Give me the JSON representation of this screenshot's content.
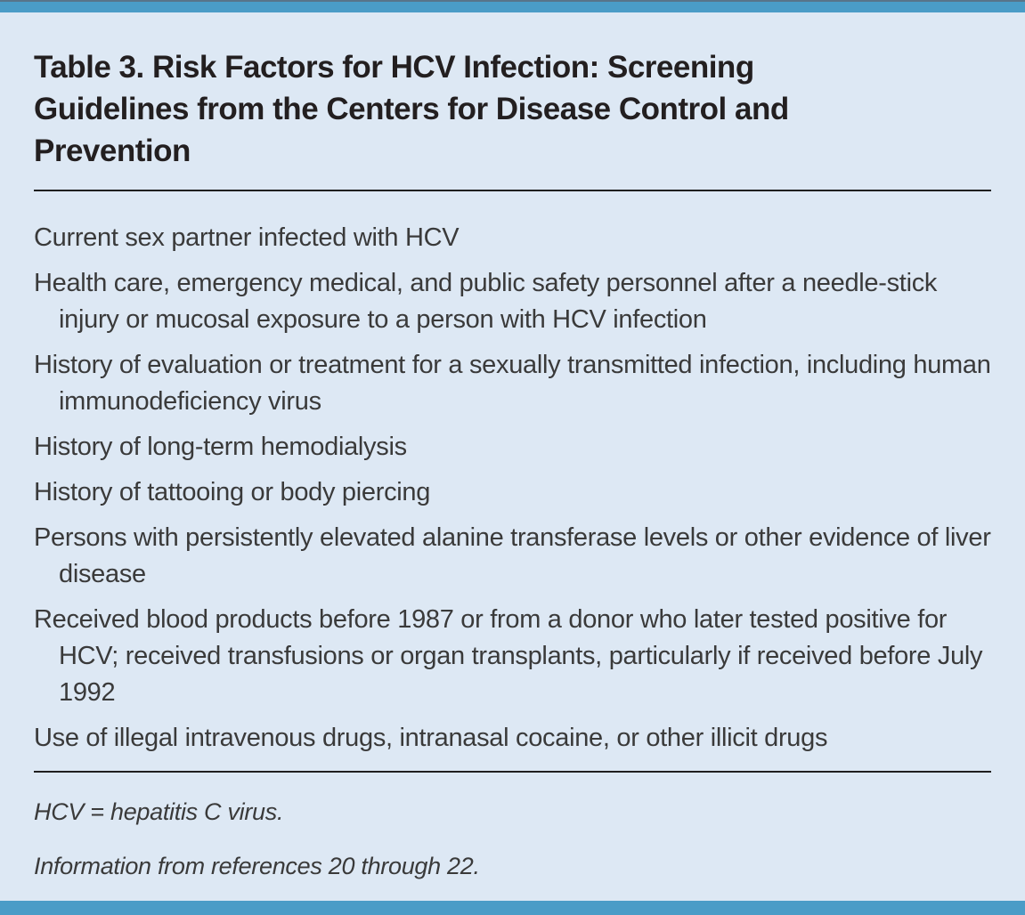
{
  "table": {
    "title": "Table 3. Risk Factors for HCV Infection: Screening Guidelines from the Centers for Disease Control and Prevention",
    "items": [
      "Current sex partner infected with HCV",
      "Health care, emergency medical, and public safety personnel after a needle-stick injury or mucosal exposure to a person with HCV infection",
      "History of evaluation or treatment for a sexually transmitted infection, including human immunodeficiency virus",
      "History of long-term hemodialysis",
      "History of tattooing or body piercing",
      "Persons with persistently elevated alanine transferase levels or other evidence of liver disease",
      "Received blood products before 1987 or from a donor who later tested positive for HCV; received transfusions or organ transplants, particularly if received before July 1992",
      "Use of illegal intravenous drugs, intranasal cocaine, or other illicit drugs"
    ],
    "footnotes": [
      "HCV = hepatitis C virus.",
      "Information from references 20 through 22."
    ],
    "colors": {
      "accent_bar": "#4a9cc7",
      "panel_background": "#dde8f4",
      "title_text": "#231f20",
      "body_text": "#3a3a3a",
      "rule": "#1f1f1f"
    }
  }
}
